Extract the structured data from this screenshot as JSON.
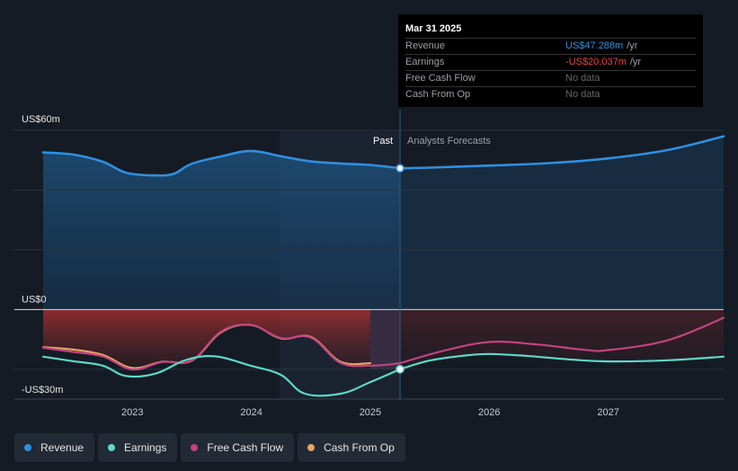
{
  "tooltip": {
    "date": "Mar 31 2025",
    "rows": [
      {
        "label": "Revenue",
        "value": "US$47.288m",
        "unit": "/yr",
        "color": "#2f8fe0"
      },
      {
        "label": "Earnings",
        "value": "-US$20.037m",
        "unit": "/yr",
        "color": "#e8463f"
      },
      {
        "label": "Free Cash Flow",
        "value": "No data",
        "unit": "",
        "color": "#666666"
      },
      {
        "label": "Cash From Op",
        "value": "No data",
        "unit": "",
        "color": "#666666"
      }
    ]
  },
  "legend": [
    {
      "label": "Revenue",
      "color": "#2f8fe0"
    },
    {
      "label": "Earnings",
      "color": "#5fd8c8"
    },
    {
      "label": "Free Cash Flow",
      "color": "#c0447f"
    },
    {
      "label": "Cash From Op",
      "color": "#e8a561"
    }
  ],
  "chart_data": {
    "type": "line",
    "title": "",
    "y_unit": "US$m",
    "y_tick_labels": [
      {
        "value": 60,
        "label": "US$60m"
      },
      {
        "value": 0,
        "label": "US$0"
      },
      {
        "value": -30,
        "label": "-US$30m"
      }
    ],
    "ylim": [
      -30,
      60
    ],
    "xlim": [
      2022.25,
      2027.97
    ],
    "x_ticks": [
      "2023",
      "2024",
      "2025",
      "2026",
      "2027"
    ],
    "divider_x": 2025.25,
    "past_label": "Past",
    "forecast_label": "Analysts Forecasts",
    "series": [
      {
        "name": "Revenue",
        "color": "#2f8fe0",
        "x": [
          2022.25,
          2022.5,
          2022.75,
          2022.95,
          2023.2,
          2023.35,
          2023.5,
          2023.75,
          2024.0,
          2024.25,
          2024.5,
          2024.75,
          2025.0,
          2025.25
        ],
        "y": [
          52.6,
          51.9,
          49.5,
          45.8,
          44.9,
          45.5,
          48.8,
          51.3,
          53.1,
          51.3,
          49.6,
          48.9,
          48.4,
          47.3
        ]
      },
      {
        "name": "Revenue forecast",
        "color": "#2f8fe0",
        "forecast": true,
        "x": [
          2025.25,
          2025.5,
          2026.0,
          2026.5,
          2027.0,
          2027.5,
          2027.97
        ],
        "y": [
          47.3,
          47.5,
          48.2,
          49.0,
          50.6,
          53.4,
          58.0
        ]
      },
      {
        "name": "Earnings",
        "color": "#5fd8c8",
        "x": [
          2022.25,
          2022.5,
          2022.75,
          2022.95,
          2023.2,
          2023.45,
          2023.7,
          2024.0,
          2024.25,
          2024.45,
          2024.75,
          2025.0,
          2025.25
        ],
        "y": [
          -15.8,
          -17.3,
          -18.8,
          -22.3,
          -21.4,
          -16.9,
          -15.7,
          -18.9,
          -21.9,
          -28.2,
          -28.2,
          -24.3,
          -20.0
        ]
      },
      {
        "name": "Earnings forecast",
        "color": "#5fd8c8",
        "forecast": true,
        "x": [
          2025.25,
          2025.5,
          2025.8,
          2026.0,
          2026.3,
          2026.7,
          2027.0,
          2027.5,
          2027.97
        ],
        "y": [
          -20.0,
          -17.1,
          -15.4,
          -14.9,
          -15.5,
          -16.8,
          -17.4,
          -17.0,
          -15.8
        ]
      },
      {
        "name": "Free Cash Flow",
        "color": "#c0447f",
        "x": [
          2022.25,
          2022.5,
          2022.75,
          2023.0,
          2023.25,
          2023.5,
          2023.75,
          2024.0,
          2024.25,
          2024.5,
          2024.75,
          2025.0,
          2025.25
        ],
        "y": [
          -12.8,
          -14.2,
          -15.7,
          -20.1,
          -17.6,
          -17.0,
          -7.3,
          -5.2,
          -9.6,
          -9.4,
          -17.9,
          -18.8,
          -18.0
        ]
      },
      {
        "name": "Free Cash Flow forecast",
        "color": "#c0447f",
        "forecast": true,
        "x": [
          2025.25,
          2025.6,
          2026.0,
          2026.4,
          2026.8,
          2027.0,
          2027.5,
          2027.97
        ],
        "y": [
          -18.0,
          -14.0,
          -10.9,
          -11.7,
          -13.5,
          -13.6,
          -10.3,
          -2.8
        ]
      },
      {
        "name": "Cash From Op",
        "color": "#e8a561",
        "x": [
          2022.25,
          2022.5,
          2022.75,
          2023.0,
          2023.25,
          2023.5,
          2023.75,
          2024.0,
          2024.25,
          2024.5,
          2024.75,
          2025.0
        ],
        "y": [
          -12.6,
          -13.4,
          -15.2,
          -19.6,
          -17.5,
          -17.1,
          -7.5,
          -5.2,
          -9.7,
          -9.2,
          -17.5,
          -18.0
        ]
      }
    ]
  }
}
